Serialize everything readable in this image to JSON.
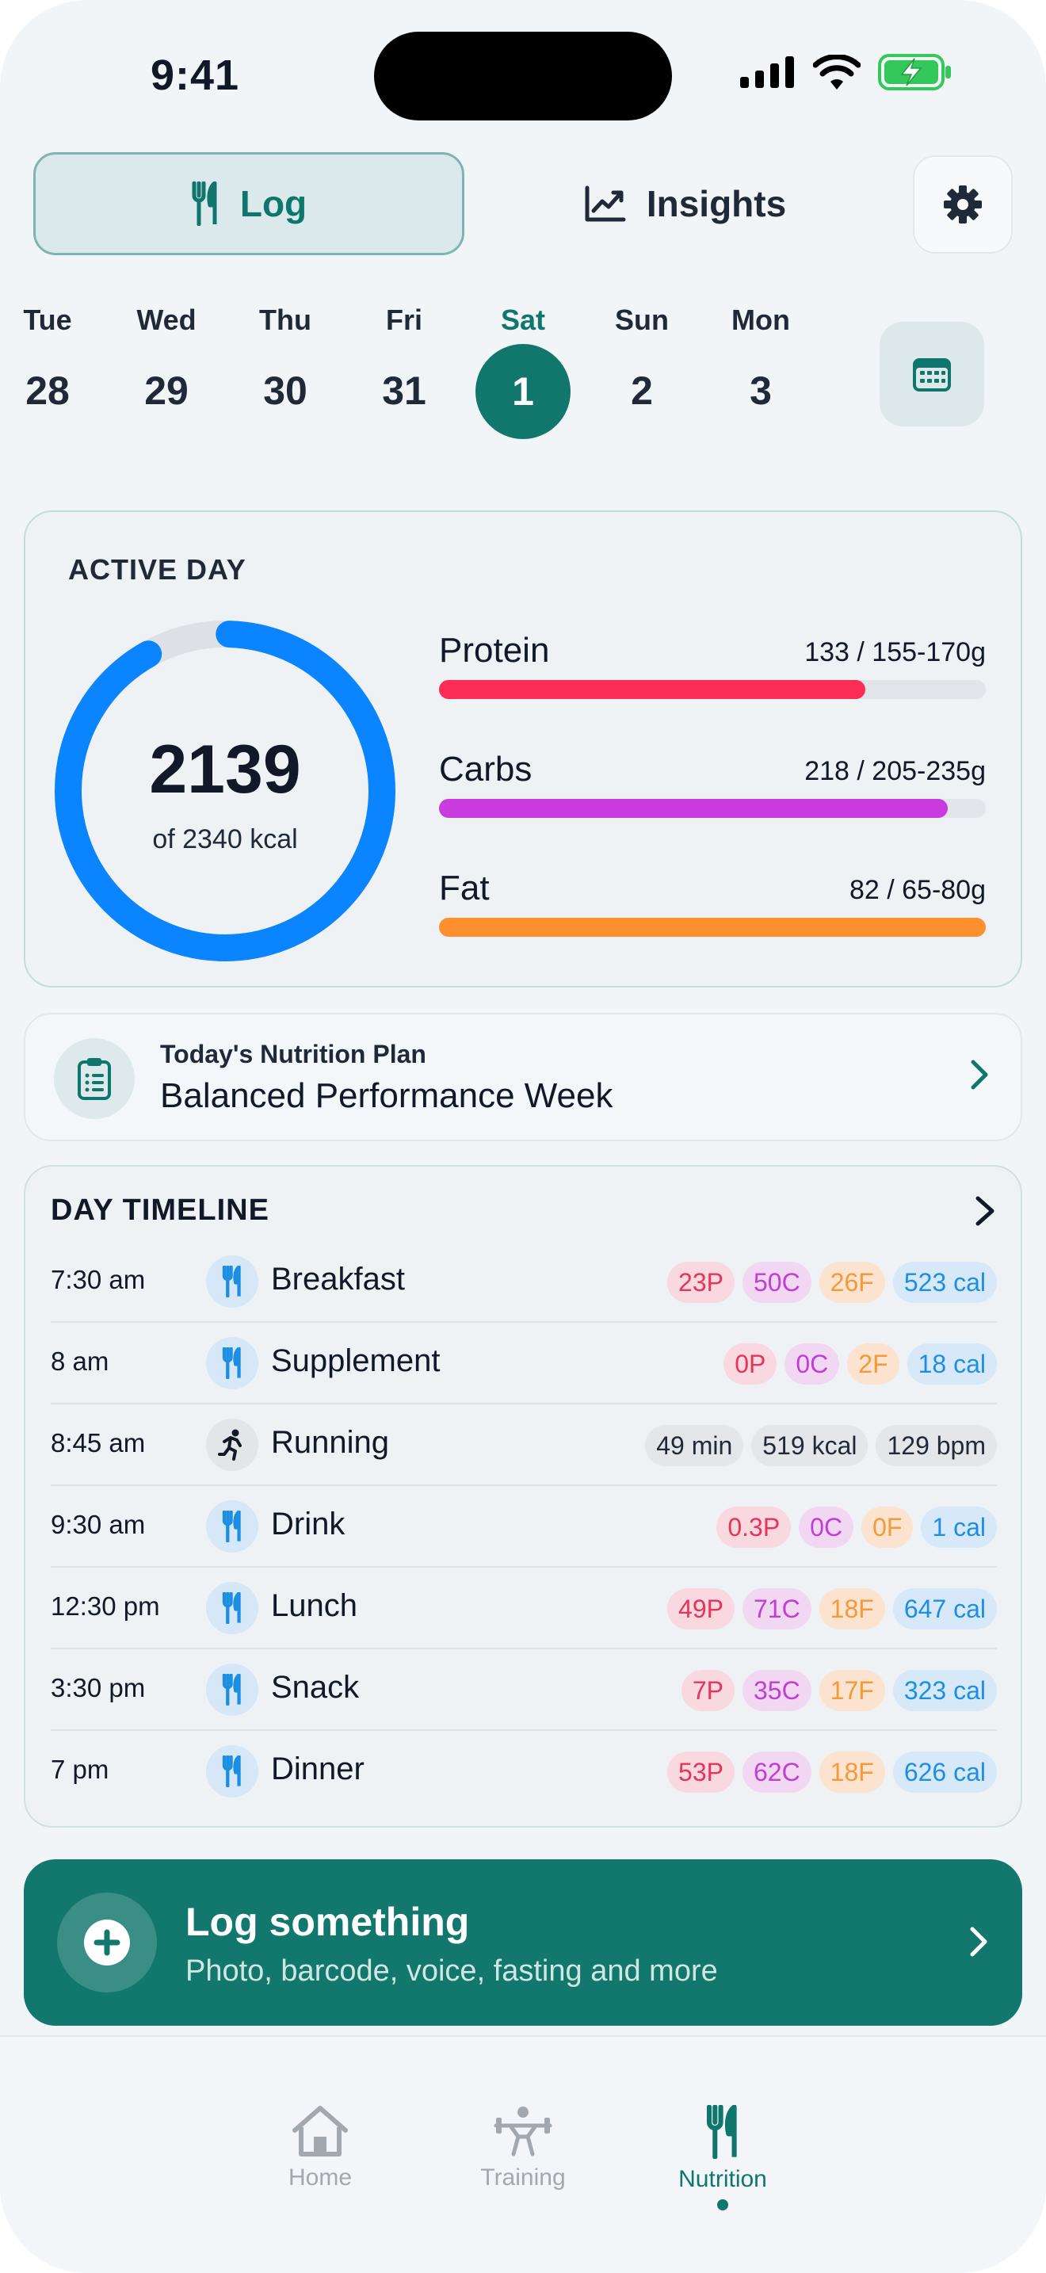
{
  "status_bar": {
    "time": "9:41"
  },
  "tabs": {
    "log_label": "Log",
    "insights_label": "Insights"
  },
  "date_strip": {
    "days": [
      {
        "name": "Tue",
        "num": "28"
      },
      {
        "name": "Wed",
        "num": "29"
      },
      {
        "name": "Thu",
        "num": "30"
      },
      {
        "name": "Fri",
        "num": "31"
      },
      {
        "name": "Sat",
        "num": "1",
        "active": true
      },
      {
        "name": "Sun",
        "num": "2"
      },
      {
        "name": "Mon",
        "num": "3"
      }
    ]
  },
  "active_day": {
    "title": "ACTIVE DAY",
    "calories_value": "2139",
    "calories_sub": "of 2340 kcal",
    "calories_progress": 0.914,
    "macros": [
      {
        "name": "Protein",
        "value": "133 / 155-170g",
        "progress": 0.78,
        "color": "#fb2c55"
      },
      {
        "name": "Carbs",
        "value": "218 / 205-235g",
        "progress": 0.93,
        "color": "#c93adf"
      },
      {
        "name": "Fat",
        "value": "82 / 65-80g",
        "progress": 1.0,
        "color": "#fd8f2f"
      }
    ]
  },
  "plan": {
    "label": "Today's Nutrition Plan",
    "title": "Balanced Performance Week"
  },
  "timeline": {
    "title": "DAY TIMELINE",
    "rows": [
      {
        "time": "7:30 am",
        "label": "Breakfast",
        "type": "food",
        "chips": [
          "23P",
          "50C",
          "26F",
          "523 cal"
        ]
      },
      {
        "time": "8 am",
        "label": "Supplement",
        "type": "food",
        "chips": [
          "0P",
          "0C",
          "2F",
          "18 cal"
        ]
      },
      {
        "time": "8:45 am",
        "label": "Running",
        "type": "run",
        "chips": [
          "49 min",
          "519 kcal",
          "129 bpm"
        ]
      },
      {
        "time": "9:30 am",
        "label": "Drink",
        "type": "food",
        "chips": [
          "0.3P",
          "0C",
          "0F",
          "1 cal"
        ]
      },
      {
        "time": "12:30 pm",
        "label": "Lunch",
        "type": "food",
        "chips": [
          "49P",
          "71C",
          "18F",
          "647 cal"
        ]
      },
      {
        "time": "3:30 pm",
        "label": "Snack",
        "type": "food",
        "chips": [
          "7P",
          "35C",
          "17F",
          "323 cal"
        ]
      },
      {
        "time": "7 pm",
        "label": "Dinner",
        "type": "food",
        "chips": [
          "53P",
          "62C",
          "18F",
          "626 cal"
        ]
      }
    ]
  },
  "log_button": {
    "title": "Log something",
    "subtitle": "Photo, barcode, voice, fasting and more"
  },
  "bottom_nav": {
    "items": [
      {
        "label": "Home",
        "icon": "home-icon"
      },
      {
        "label": "Training",
        "icon": "weightlifter-icon"
      },
      {
        "label": "Nutrition",
        "icon": "fork-knife-icon",
        "active": true
      }
    ]
  },
  "colors": {
    "accent": "#11776d",
    "ring": "#0a84ff"
  }
}
